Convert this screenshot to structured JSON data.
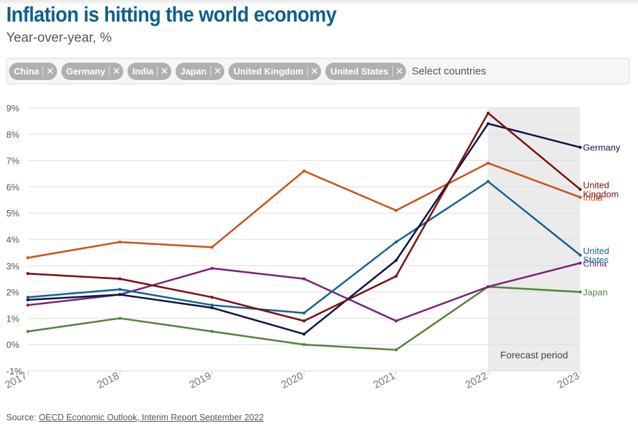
{
  "title": "Inflation is hitting the world economy",
  "subtitle": "Year-over-year, %",
  "selector": {
    "chips": [
      {
        "label": "China"
      },
      {
        "label": "Germany"
      },
      {
        "label": "India"
      },
      {
        "label": "Japan"
      },
      {
        "label": "United Kingdom"
      },
      {
        "label": "United States"
      }
    ],
    "placeholder": "Select countries"
  },
  "source": {
    "prefix": "Source: ",
    "link_text": "OECD Economic Outlook, Interim Report September 2022"
  },
  "chart_data": {
    "type": "line",
    "x": [
      "2017",
      "2018",
      "2019",
      "2020",
      "2021",
      "2022",
      "2023"
    ],
    "ylim": [
      -1,
      9
    ],
    "yticks": [
      "-1%",
      "0%",
      "1%",
      "2%",
      "3%",
      "4%",
      "5%",
      "6%",
      "7%",
      "8%",
      "9%"
    ],
    "grid": true,
    "forecast": {
      "from": "2022",
      "to": "2023",
      "label": "Forecast period",
      "color": "#ebebeb"
    },
    "series": [
      {
        "name": "India",
        "label_lines": [
          "India"
        ],
        "color": "#c8541b",
        "values": [
          3.3,
          3.9,
          3.7,
          6.6,
          5.1,
          6.9,
          5.6
        ]
      },
      {
        "name": "Japan",
        "label_lines": [
          "Japan"
        ],
        "color": "#55843a",
        "values": [
          0.5,
          1.0,
          0.5,
          0.0,
          -0.2,
          2.2,
          2.0
        ]
      },
      {
        "name": "China",
        "label_lines": [
          "China"
        ],
        "color": "#7e1e80",
        "values": [
          1.5,
          1.9,
          2.9,
          2.5,
          0.9,
          2.2,
          3.1
        ]
      },
      {
        "name": "United States",
        "label_lines": [
          "United",
          "States"
        ],
        "color": "#15658f",
        "values": [
          1.8,
          2.1,
          1.5,
          1.2,
          3.9,
          6.2,
          3.4
        ]
      },
      {
        "name": "Germany",
        "label_lines": [
          "Germany"
        ],
        "color": "#0d1845",
        "values": [
          1.7,
          1.9,
          1.4,
          0.4,
          3.2,
          8.4,
          7.5
        ]
      },
      {
        "name": "United Kingdom",
        "label_lines": [
          "United",
          "Kingdom"
        ],
        "color": "#7f1010",
        "values": [
          2.7,
          2.5,
          1.8,
          0.9,
          2.6,
          8.8,
          5.9
        ]
      }
    ]
  }
}
